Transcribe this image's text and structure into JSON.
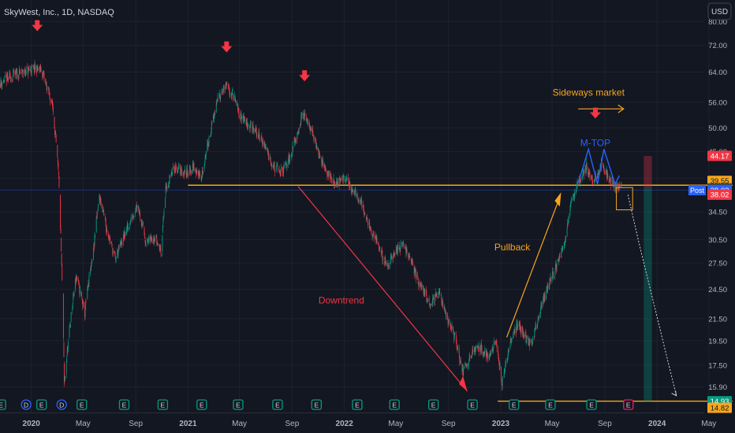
{
  "header": {
    "title": "SkyWest, Inc., 1D, NASDAQ"
  },
  "currency_button": {
    "label": "USD"
  },
  "chart_data": {
    "type": "candlestick",
    "title": "SkyWest, Inc., 1D, NASDAQ",
    "y_scale": "log",
    "ylim": [
      14.2,
      88
    ],
    "x_range": [
      "2019-10-20",
      "2024-07-01"
    ],
    "y_ticks": [
      "80.00",
      "72.00",
      "64.00",
      "56.00",
      "50.00",
      "45.00",
      "40.00",
      "34.50",
      "30.50",
      "27.50",
      "24.50",
      "21.50",
      "19.50",
      "17.50",
      "15.90"
    ],
    "x_ticks": [
      {
        "date": "2020-01-01",
        "label": "2020",
        "bold": true
      },
      {
        "date": "2020-05-01",
        "label": "May",
        "bold": false
      },
      {
        "date": "2020-09-01",
        "label": "Sep",
        "bold": false
      },
      {
        "date": "2021-01-01",
        "label": "2021",
        "bold": true
      },
      {
        "date": "2021-05-01",
        "label": "May",
        "bold": false
      },
      {
        "date": "2021-09-01",
        "label": "Sep",
        "bold": false
      },
      {
        "date": "2022-01-01",
        "label": "2022",
        "bold": true
      },
      {
        "date": "2022-05-01",
        "label": "May",
        "bold": false
      },
      {
        "date": "2022-09-01",
        "label": "Sep",
        "bold": false
      },
      {
        "date": "2023-01-01",
        "label": "2023",
        "bold": true
      },
      {
        "date": "2023-05-01",
        "label": "May",
        "bold": false
      },
      {
        "date": "2023-09-01",
        "label": "Sep",
        "bold": false
      },
      {
        "date": "2024-01-01",
        "label": "2024",
        "bold": true
      },
      {
        "date": "2024-05-01",
        "label": "May",
        "bold": false
      }
    ],
    "price_path": [
      [
        "2019-10-21",
        61
      ],
      [
        "2019-11-20",
        63
      ],
      [
        "2019-12-15",
        64
      ],
      [
        "2020-01-10",
        65
      ],
      [
        "2020-01-25",
        64.5
      ],
      [
        "2020-02-20",
        55
      ],
      [
        "2020-03-05",
        40
      ],
      [
        "2020-03-18",
        16
      ],
      [
        "2020-04-01",
        21
      ],
      [
        "2020-04-15",
        26
      ],
      [
        "2020-05-05",
        22
      ],
      [
        "2020-05-25",
        29
      ],
      [
        "2020-06-08",
        37
      ],
      [
        "2020-06-25",
        32
      ],
      [
        "2020-07-15",
        28
      ],
      [
        "2020-08-05",
        31
      ],
      [
        "2020-08-20",
        33
      ],
      [
        "2020-09-05",
        36
      ],
      [
        "2020-09-25",
        30
      ],
      [
        "2020-10-15",
        31
      ],
      [
        "2020-10-30",
        29
      ],
      [
        "2020-11-10",
        38
      ],
      [
        "2020-12-01",
        42
      ],
      [
        "2020-12-25",
        41
      ],
      [
        "2021-01-15",
        42
      ],
      [
        "2021-02-01",
        40
      ],
      [
        "2021-02-20",
        48
      ],
      [
        "2021-03-15",
        58
      ],
      [
        "2021-03-30",
        60
      ],
      [
        "2021-04-15",
        58
      ],
      [
        "2021-05-01",
        53
      ],
      [
        "2021-05-20",
        51
      ],
      [
        "2021-06-10",
        49
      ],
      [
        "2021-07-01",
        46
      ],
      [
        "2021-07-20",
        42
      ],
      [
        "2021-08-10",
        41
      ],
      [
        "2021-09-01",
        45
      ],
      [
        "2021-09-25",
        53
      ],
      [
        "2021-10-10",
        51
      ],
      [
        "2021-10-25",
        47
      ],
      [
        "2021-11-15",
        42
      ],
      [
        "2021-12-10",
        39
      ],
      [
        "2022-01-05",
        40
      ],
      [
        "2022-01-20",
        38
      ],
      [
        "2022-02-10",
        36
      ],
      [
        "2022-03-01",
        32
      ],
      [
        "2022-03-20",
        30
      ],
      [
        "2022-04-10",
        27
      ],
      [
        "2022-05-01",
        29
      ],
      [
        "2022-05-20",
        30
      ],
      [
        "2022-06-10",
        27
      ],
      [
        "2022-07-01",
        24.5
      ],
      [
        "2022-07-20",
        23
      ],
      [
        "2022-08-10",
        24
      ],
      [
        "2022-08-25",
        22
      ],
      [
        "2022-09-15",
        20
      ],
      [
        "2022-10-05",
        17
      ],
      [
        "2022-10-25",
        18.5
      ],
      [
        "2022-11-15",
        19
      ],
      [
        "2022-12-05",
        18
      ],
      [
        "2022-12-20",
        19.5
      ],
      [
        "2023-01-05",
        16
      ],
      [
        "2023-01-20",
        19
      ],
      [
        "2023-02-10",
        21
      ],
      [
        "2023-02-25",
        20
      ],
      [
        "2023-03-15",
        19
      ],
      [
        "2023-04-01",
        22
      ],
      [
        "2023-04-20",
        24.5
      ],
      [
        "2023-05-10",
        27
      ],
      [
        "2023-05-30",
        30
      ],
      [
        "2023-06-15",
        36
      ],
      [
        "2023-07-01",
        39
      ],
      [
        "2023-07-20",
        42
      ],
      [
        "2023-08-05",
        39
      ],
      [
        "2023-08-25",
        43
      ],
      [
        "2023-09-10",
        40
      ],
      [
        "2023-09-25",
        39
      ],
      [
        "2023-10-10",
        38.3
      ]
    ],
    "levels": [
      {
        "name": "resistance-line",
        "value": 38.8,
        "from": "2021-01-01",
        "to": "2024-06-25",
        "color": "#F7A61C"
      },
      {
        "name": "support-line",
        "value": 14.93,
        "from": "2022-12-25",
        "to": "2024-06-25",
        "color": "#F7A61C"
      }
    ],
    "price_tags": [
      {
        "name": "tag-44-17",
        "label": "44.17",
        "value": 44.17,
        "bg": "#F23645",
        "fg": "#FFFFFF"
      },
      {
        "name": "tag-39-55",
        "label": "39.55",
        "value": 39.55,
        "bg": "#F7A61C",
        "fg": "#131722"
      },
      {
        "name": "tag-38-27",
        "label": "38.27",
        "value": 38.27,
        "bg": "#434651",
        "fg": "#FFFFFF"
      },
      {
        "name": "tag-38-02-post",
        "label": "38.02",
        "value": 37.95,
        "bg": "#2962FF",
        "fg": "#FFFFFF",
        "prefix": "Post"
      },
      {
        "name": "tag-38-02",
        "label": "38.02",
        "value": 37.2,
        "bg": "#F23645",
        "fg": "#FFFFFF"
      },
      {
        "name": "tag-14-93",
        "label": "14.93",
        "value": 14.93,
        "bg": "#089981",
        "fg": "#FFFFFF"
      },
      {
        "name": "tag-14-82",
        "label": "14.82",
        "value": 14.5,
        "bg": "#F7A61C",
        "fg": "#131722"
      }
    ],
    "annotations": [
      {
        "name": "annotation-sideways-market",
        "text": "Sideways market",
        "date": "2023-07-25",
        "value": 58.5,
        "color": "#F7A61C"
      },
      {
        "name": "annotation-m-top",
        "text": "M-TOP",
        "date": "2023-08-10",
        "value": 46.8,
        "color": "#2962FF"
      },
      {
        "name": "annotation-pullback",
        "text": "Pullback",
        "date": "2023-01-28",
        "value": 29.5,
        "color": "#F7A61C"
      },
      {
        "name": "annotation-downtrend",
        "text": "Downtrend",
        "date": "2021-12-25",
        "value": 23.3,
        "color": "#F23645"
      }
    ],
    "top_markers": [
      {
        "date": "2020-01-15",
        "value": 78
      },
      {
        "date": "2021-04-01",
        "value": 71
      },
      {
        "date": "2021-09-30",
        "value": 62.5
      },
      {
        "date": "2023-08-10",
        "value": 53
      }
    ],
    "event_badges": [
      {
        "date": "2019-10-22",
        "letter": "E",
        "type": "earnings"
      },
      {
        "date": "2019-12-20",
        "letter": "D",
        "type": "dividend"
      },
      {
        "date": "2020-01-25",
        "letter": "E",
        "type": "earnings"
      },
      {
        "date": "2020-03-12",
        "letter": "D",
        "type": "dividend"
      },
      {
        "date": "2020-04-28",
        "letter": "E",
        "type": "earnings"
      },
      {
        "date": "2020-08-05",
        "letter": "E",
        "type": "earnings"
      },
      {
        "date": "2020-11-03",
        "letter": "E",
        "type": "earnings"
      },
      {
        "date": "2021-02-02",
        "letter": "E",
        "type": "earnings"
      },
      {
        "date": "2021-04-28",
        "letter": "E",
        "type": "earnings"
      },
      {
        "date": "2021-07-29",
        "letter": "E",
        "type": "earnings"
      },
      {
        "date": "2021-10-28",
        "letter": "E",
        "type": "earnings"
      },
      {
        "date": "2022-01-31",
        "letter": "E",
        "type": "earnings"
      },
      {
        "date": "2022-04-28",
        "letter": "E",
        "type": "earnings"
      },
      {
        "date": "2022-07-28",
        "letter": "E",
        "type": "earnings"
      },
      {
        "date": "2022-10-27",
        "letter": "E",
        "type": "earnings"
      },
      {
        "date": "2023-02-01",
        "letter": "E",
        "type": "earnings"
      },
      {
        "date": "2023-04-27",
        "letter": "E",
        "type": "earnings"
      },
      {
        "date": "2023-08-01",
        "letter": "E",
        "type": "earnings"
      },
      {
        "date": "2023-10-26",
        "letter": "E",
        "type": "earnings-upcoming"
      }
    ],
    "colors": {
      "background": "#131722",
      "grid": "#1E222D",
      "axis_text": "#B2B5BE",
      "up": "#089981",
      "down": "#F23645",
      "trend_down": "#F23645",
      "trend_up": "#F7A61C",
      "m_top": "#2962FF",
      "projection": "#D1D4DC"
    }
  }
}
